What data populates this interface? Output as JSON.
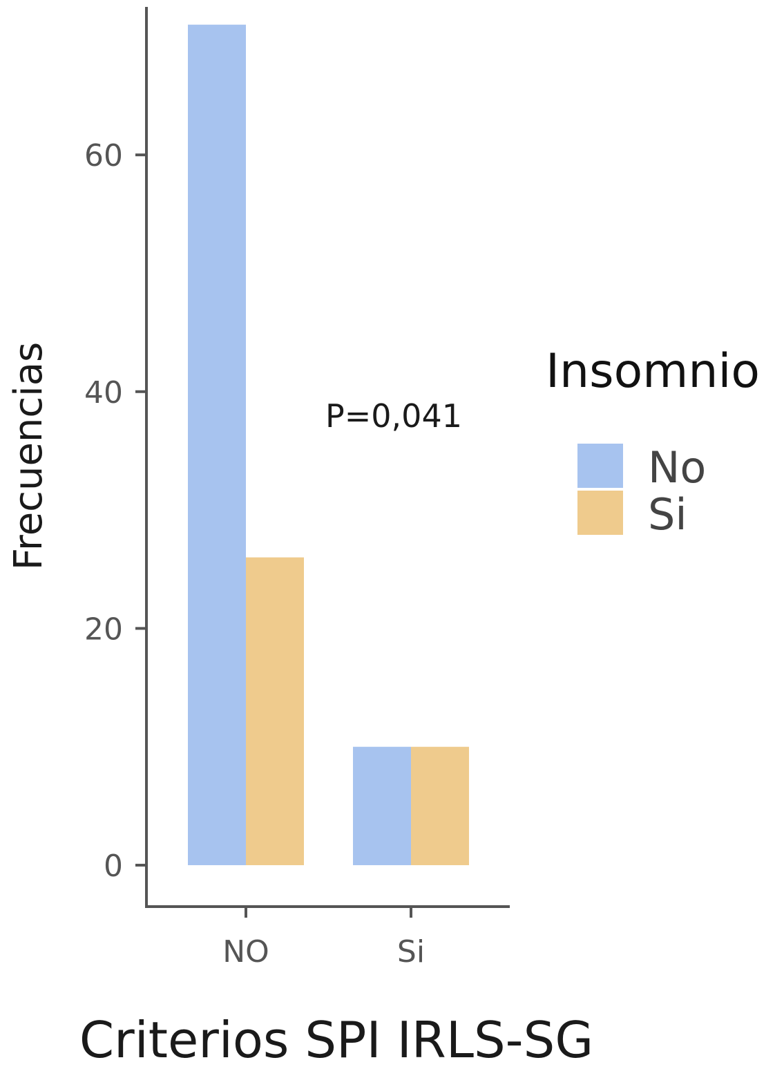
{
  "chart_data": {
    "type": "bar",
    "title": "",
    "xlabel": "Criterios SPI IRLS-SG",
    "ylabel": "Frecuencias",
    "categories": [
      "NO",
      "Si"
    ],
    "series": [
      {
        "name": "No",
        "color": "#a7c3ef",
        "values": [
          71,
          10
        ]
      },
      {
        "name": "Si",
        "color": "#efcb8d",
        "values": [
          26,
          10
        ]
      }
    ],
    "yticks": [
      0,
      20,
      40,
      60
    ],
    "ylim": [
      -3.5,
      72.5
    ],
    "grid": false,
    "legend": {
      "title": "Insomnio",
      "placement": "right"
    },
    "annotation": "P=0,041"
  }
}
